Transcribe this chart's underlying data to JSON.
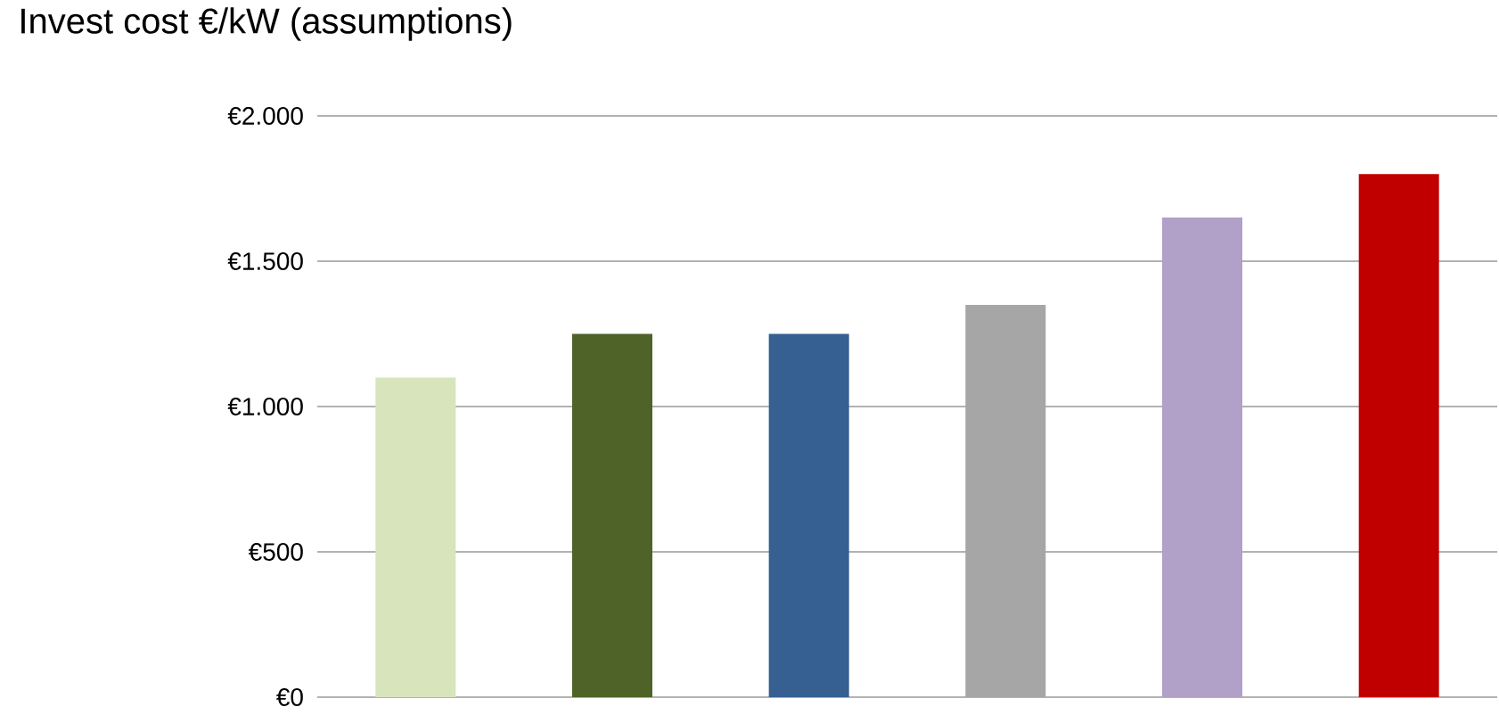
{
  "chart_data": {
    "type": "bar",
    "title": "Invest cost €/kW (assumptions)",
    "categories": [
      null,
      null,
      null,
      null,
      null,
      null
    ],
    "values": [
      1100,
      1250,
      1250,
      1350,
      1650,
      1800
    ],
    "colors": [
      "#d8e4bc",
      "#4f6228",
      "#366092",
      "#a6a6a6",
      "#b1a0c7",
      "#c00000"
    ],
    "ylim": [
      0,
      2000
    ],
    "yticks": [
      {
        "value": 0,
        "label": "€0"
      },
      {
        "value": 500,
        "label": "€500"
      },
      {
        "value": 1000,
        "label": "€1.000"
      },
      {
        "value": 1500,
        "label": "€1.500"
      },
      {
        "value": 2000,
        "label": "€2.000"
      }
    ],
    "grid": "y"
  }
}
